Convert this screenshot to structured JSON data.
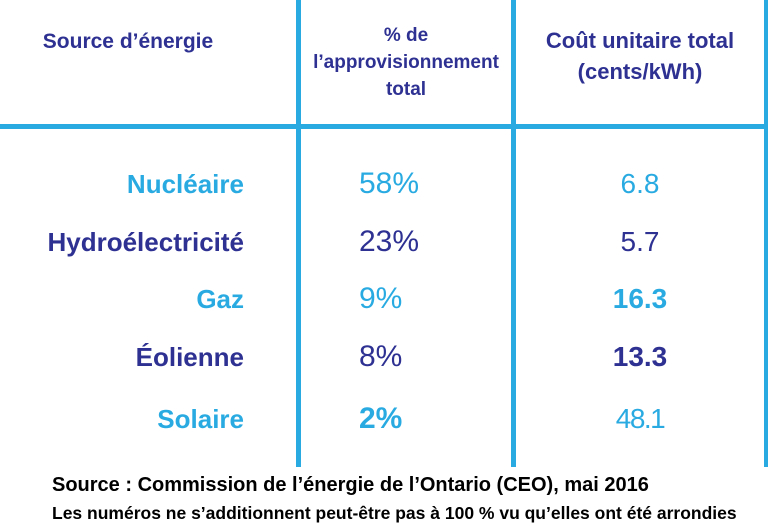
{
  "colors": {
    "cyan": "#29ABE2",
    "navy": "#2E3192",
    "footer_text": "#000000",
    "background": "#FFFFFF"
  },
  "table": {
    "headers": [
      "Source d’énergie",
      "% de\nl’approvisionnement\ntotal",
      "Coût unitaire total\n(cents/kWh)"
    ],
    "rows": [
      {
        "source": "Nucléaire",
        "share": "58%",
        "cost": "6.8",
        "tone": "cyan",
        "share_style": "regular",
        "cost_style": "regular"
      },
      {
        "source": "Hydroélectricité",
        "share": "23%",
        "cost": "5.7",
        "tone": "navy",
        "share_style": "regular",
        "cost_style": "regular"
      },
      {
        "source": "Gaz",
        "share": "9%",
        "cost": "16.3",
        "tone": "cyan",
        "share_style": "regular",
        "cost_style": "bold"
      },
      {
        "source": "Éolienne",
        "share": "8%",
        "cost": "13.3",
        "tone": "navy",
        "share_style": "regular",
        "cost_style": "bold"
      },
      {
        "source": "Solaire",
        "share": "2%",
        "cost": "48.1",
        "tone": "cyan",
        "share_style": "bold",
        "cost_style": "narrow"
      }
    ]
  },
  "footer": {
    "source_line": "Source : Commission de l’énergie de l’Ontario (CEO), mai 2016",
    "note_line": "Les numéros ne s’additionnent peut-être pas à 100 % vu qu’elles ont été arrondies"
  },
  "chart_data": {
    "type": "table",
    "title": "",
    "columns": [
      "Source d’énergie",
      "% de l’approvisionnement total",
      "Coût unitaire total (cents/kWh)"
    ],
    "rows": [
      [
        "Nucléaire",
        58,
        6.8
      ],
      [
        "Hydroélectricité",
        23,
        5.7
      ],
      [
        "Gaz",
        9,
        16.3
      ],
      [
        "Éolienne",
        8,
        13.3
      ],
      [
        "Solaire",
        2,
        48.1
      ]
    ],
    "units": {
      "share": "%",
      "cost": "cents/kWh"
    },
    "source": "Commission de l’énergie de l’Ontario (CEO), mai 2016",
    "footnote": "Les numéros ne s’additionnent peut-être pas à 100 % vu qu’elles ont été arrondies"
  }
}
